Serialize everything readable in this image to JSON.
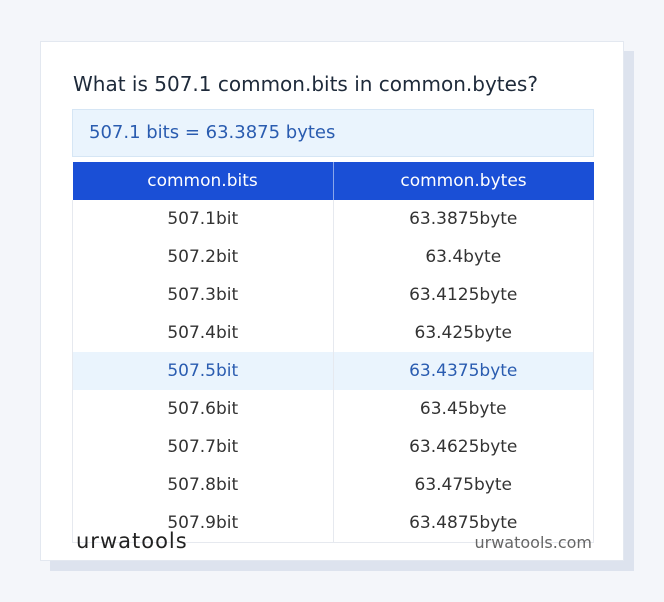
{
  "header": {
    "title": "What is 507.1 common.bits in common.bytes?"
  },
  "result": "507.1 bits = 63.3875 bytes",
  "table": {
    "columns": [
      "common.bits",
      "common.bytes"
    ],
    "rows": [
      [
        "507.1bit",
        "63.3875byte"
      ],
      [
        "507.2bit",
        "63.4byte"
      ],
      [
        "507.3bit",
        "63.4125byte"
      ],
      [
        "507.4bit",
        "63.425byte"
      ],
      [
        "507.5bit",
        "63.4375byte"
      ],
      [
        "507.6bit",
        "63.45byte"
      ],
      [
        "507.7bit",
        "63.4625byte"
      ],
      [
        "507.8bit",
        "63.475byte"
      ],
      [
        "507.9bit",
        "63.4875byte"
      ]
    ],
    "highlighted_row": 4
  },
  "footer": {
    "brand": "urwatools",
    "site": "urwatools.com"
  }
}
